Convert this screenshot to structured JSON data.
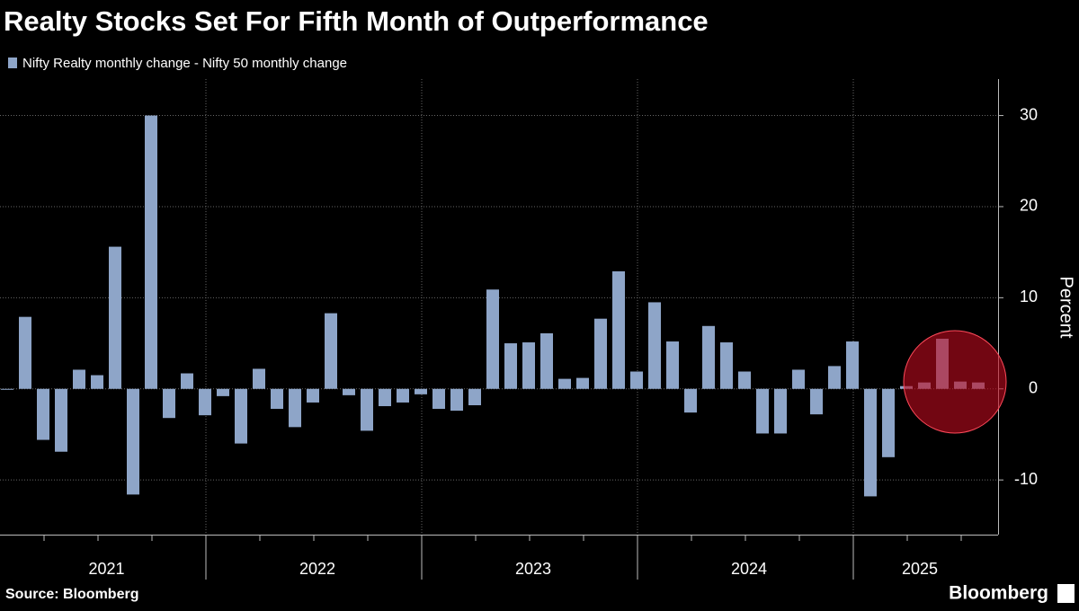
{
  "chart_data": {
    "type": "bar",
    "title": "Realty Stocks Set For Fifth Month of Outperformance",
    "legend": "Nifty Realty monthly change - Nifty 50 monthly change",
    "y_axis_label": "Percent",
    "source": "Source: Bloomberg",
    "brand": "Bloomberg",
    "color": "#8ea5c8",
    "categories": [
      null,
      null,
      null,
      null,
      null,
      null,
      null,
      null,
      null,
      null,
      null,
      null,
      null,
      null,
      null,
      null,
      null,
      null,
      null,
      null,
      null,
      null,
      null,
      null,
      null,
      null,
      null,
      null,
      null,
      null,
      null,
      null,
      null,
      null,
      null,
      null,
      null,
      null,
      null,
      null,
      null,
      null,
      null,
      null,
      null,
      null,
      null,
      null,
      null,
      null,
      null,
      null,
      null,
      null,
      null
    ],
    "values": [
      -0.1,
      7.9,
      -5.6,
      -6.9,
      2.1,
      1.5,
      15.6,
      -11.6,
      30,
      -3.2,
      1.7,
      -2.9,
      -0.8,
      -6,
      2.2,
      -2.2,
      -4.2,
      -1.5,
      8.3,
      -0.7,
      -4.6,
      -1.9,
      -1.5,
      -0.6,
      -2.2,
      -2.4,
      -1.8,
      10.9,
      5,
      5.1,
      6.1,
      1.1,
      1.2,
      7.7,
      12.9,
      1.9,
      9.5,
      5.2,
      -2.6,
      6.9,
      5.1,
      1.9,
      -4.9,
      -4.9,
      2.1,
      -2.8,
      2.5,
      5.2,
      -11.8,
      -7.5,
      0.3,
      0.7,
      5.5,
      0.8,
      0.7
    ],
    "year_groups": [
      {
        "label": "2021",
        "count": 12
      },
      {
        "label": "2022",
        "count": 12
      },
      {
        "label": "2023",
        "count": 12
      },
      {
        "label": "2024",
        "count": 12
      },
      {
        "label": "2025",
        "count": 7
      }
    ],
    "ylim": [
      -16,
      34
    ],
    "yticks": [
      -10,
      0,
      10,
      20,
      30
    ],
    "grid": true
  }
}
